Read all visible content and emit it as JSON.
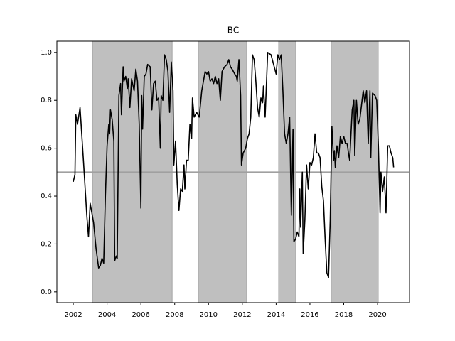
{
  "chart_data": {
    "type": "line",
    "title": "BC",
    "x": [
      2002.0,
      2002.1,
      2002.15,
      2002.25,
      2002.4,
      2002.6,
      2002.8,
      2002.9,
      2003.0,
      2003.2,
      2003.35,
      2003.5,
      2003.6,
      2003.7,
      2003.8,
      2003.9,
      2004.0,
      2004.1,
      2004.15,
      2004.2,
      2004.3,
      2004.4,
      2004.45,
      2004.55,
      2004.6,
      2004.7,
      2004.8,
      2004.85,
      2004.95,
      2005.0,
      2005.1,
      2005.2,
      2005.25,
      2005.35,
      2005.45,
      2005.6,
      2005.7,
      2005.8,
      2005.9,
      2006.0,
      2006.05,
      2006.1,
      2006.2,
      2006.3,
      2006.4,
      2006.55,
      2006.65,
      2006.75,
      2006.85,
      2006.95,
      2007.05,
      2007.15,
      2007.2,
      2007.3,
      2007.4,
      2007.5,
      2007.6,
      2007.7,
      2007.8,
      2007.9,
      2007.95,
      2008.05,
      2008.15,
      2008.25,
      2008.35,
      2008.45,
      2008.55,
      2008.6,
      2008.7,
      2008.8,
      2008.9,
      2009.0,
      2009.05,
      2009.15,
      2009.3,
      2009.45,
      2009.6,
      2009.7,
      2009.8,
      2009.9,
      2010.0,
      2010.1,
      2010.2,
      2010.3,
      2010.4,
      2010.5,
      2010.6,
      2010.7,
      2010.8,
      2010.95,
      2011.1,
      2011.2,
      2011.3,
      2011.4,
      2011.55,
      2011.65,
      2011.7,
      2011.8,
      2011.9,
      2011.95,
      2012.05,
      2012.2,
      2012.3,
      2012.4,
      2012.5,
      2012.6,
      2012.7,
      2012.8,
      2012.9,
      2013.0,
      2013.1,
      2013.2,
      2013.25,
      2013.35,
      2013.5,
      2013.7,
      2013.85,
      2014.0,
      2014.1,
      2014.2,
      2014.3,
      2014.4,
      2014.5,
      2014.6,
      2014.7,
      2014.8,
      2014.9,
      2015.0,
      2015.05,
      2015.15,
      2015.25,
      2015.35,
      2015.4,
      2015.45,
      2015.55,
      2015.6,
      2015.7,
      2015.8,
      2015.9,
      2016.0,
      2016.1,
      2016.2,
      2016.3,
      2016.4,
      2016.5,
      2016.6,
      2016.7,
      2016.8,
      2016.9,
      2017.0,
      2017.1,
      2017.2,
      2017.3,
      2017.4,
      2017.45,
      2017.5,
      2017.6,
      2017.7,
      2017.8,
      2017.9,
      2018.0,
      2018.1,
      2018.2,
      2018.3,
      2018.35,
      2018.4,
      2018.5,
      2018.6,
      2018.65,
      2018.75,
      2018.85,
      2018.95,
      2019.05,
      2019.15,
      2019.25,
      2019.35,
      2019.45,
      2019.55,
      2019.6,
      2019.7,
      2019.85,
      2019.95,
      2020.05,
      2020.15,
      2020.2,
      2020.3,
      2020.4,
      2020.5,
      2020.6,
      2020.7,
      2020.8,
      2020.9,
      2020.95
    ],
    "values": [
      0.46,
      0.49,
      0.74,
      0.7,
      0.77,
      0.55,
      0.32,
      0.23,
      0.37,
      0.29,
      0.18,
      0.1,
      0.11,
      0.14,
      0.12,
      0.4,
      0.61,
      0.7,
      0.66,
      0.76,
      0.72,
      0.63,
      0.13,
      0.15,
      0.14,
      0.82,
      0.87,
      0.74,
      0.94,
      0.88,
      0.9,
      0.85,
      0.89,
      0.77,
      0.89,
      0.84,
      0.93,
      0.88,
      0.7,
      0.35,
      0.82,
      0.68,
      0.9,
      0.91,
      0.95,
      0.94,
      0.76,
      0.87,
      0.88,
      0.8,
      0.81,
      0.6,
      0.82,
      0.8,
      0.99,
      0.97,
      0.92,
      0.75,
      0.96,
      0.84,
      0.53,
      0.63,
      0.45,
      0.34,
      0.43,
      0.42,
      0.53,
      0.43,
      0.55,
      0.55,
      0.7,
      0.64,
      0.81,
      0.73,
      0.75,
      0.73,
      0.84,
      0.88,
      0.92,
      0.91,
      0.92,
      0.88,
      0.89,
      0.87,
      0.9,
      0.87,
      0.89,
      0.8,
      0.92,
      0.94,
      0.95,
      0.97,
      0.94,
      0.93,
      0.91,
      0.9,
      0.88,
      0.97,
      0.82,
      0.53,
      0.58,
      0.6,
      0.64,
      0.66,
      0.73,
      0.99,
      0.97,
      0.88,
      0.77,
      0.73,
      0.81,
      0.79,
      0.86,
      0.73,
      1.0,
      0.99,
      0.95,
      0.91,
      0.99,
      0.97,
      0.99,
      0.84,
      0.66,
      0.62,
      0.66,
      0.73,
      0.32,
      0.68,
      0.21,
      0.22,
      0.25,
      0.23,
      0.43,
      0.27,
      0.5,
      0.16,
      0.3,
      0.53,
      0.43,
      0.54,
      0.53,
      0.56,
      0.66,
      0.58,
      0.58,
      0.56,
      0.44,
      0.38,
      0.22,
      0.08,
      0.06,
      0.3,
      0.69,
      0.55,
      0.59,
      0.52,
      0.61,
      0.56,
      0.65,
      0.62,
      0.65,
      0.62,
      0.62,
      0.57,
      0.55,
      0.62,
      0.76,
      0.8,
      0.57,
      0.8,
      0.7,
      0.72,
      0.78,
      0.84,
      0.79,
      0.84,
      0.62,
      0.84,
      0.56,
      0.83,
      0.82,
      0.8,
      0.61,
      0.33,
      0.5,
      0.42,
      0.48,
      0.33,
      0.61,
      0.61,
      0.58,
      0.56,
      0.52
    ],
    "color": "#000000",
    "shaded_regions": [
      [
        2003.14,
        2007.85
      ],
      [
        2009.4,
        2012.26
      ],
      [
        2014.15,
        2015.16
      ],
      [
        2017.26,
        2020.04
      ]
    ],
    "shade_color": "#bfbfbf",
    "hline": 0.5,
    "hline_color": "#a0a0a0",
    "xlim": [
      2001.03,
      2021.89
    ],
    "xticks": [
      2002,
      2004,
      2006,
      2008,
      2010,
      2012,
      2014,
      2016,
      2018,
      2020
    ],
    "ylim": [
      -0.045,
      1.047
    ],
    "yticks": [
      {
        "value": 0,
        "label": "0.0"
      },
      0.2,
      0.4,
      0.6,
      0.8,
      {
        "value": 1,
        "label": "1.0"
      }
    ],
    "grid": false
  }
}
